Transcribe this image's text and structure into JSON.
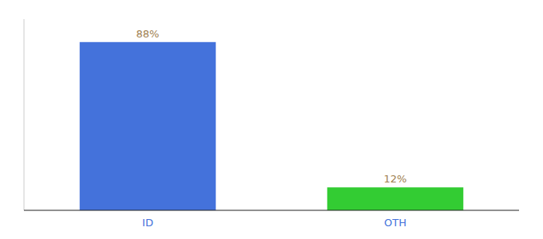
{
  "chart_data": {
    "type": "bar",
    "categories": [
      "ID",
      "OTH"
    ],
    "values": [
      88,
      12
    ],
    "value_labels": [
      "88%",
      "12%"
    ],
    "colors": [
      "#4472db",
      "#33cc33"
    ],
    "ylim": [
      0,
      100
    ],
    "data_labels": true,
    "tick_labels": "x"
  }
}
